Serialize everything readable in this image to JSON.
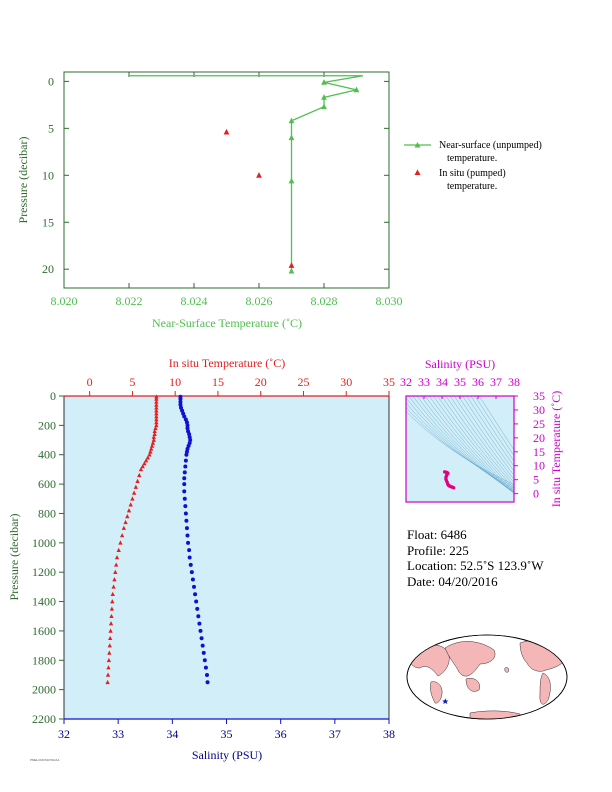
{
  "colors": {
    "green": "#4fbf4f",
    "red": "#e61e1e",
    "blue": "#1010d0",
    "magenta": "#cc00cc",
    "navy": "#00008b",
    "darkgreen": "#2f6b2f",
    "plot_bg": "#d2eef8"
  },
  "chart_data": [
    {
      "type": "line",
      "xlabel": "Near-Surface Temperature (˚C)",
      "ylabel": "Pressure (decibar)",
      "xlim": [
        8.02,
        8.03
      ],
      "ylim": [
        22,
        -1
      ],
      "x_ticks": [
        "8.020",
        "8.022",
        "8.024",
        "8.026",
        "8.028",
        "8.030"
      ],
      "x_tick_values": [
        8.02,
        8.022,
        8.024,
        8.026,
        8.028,
        8.03
      ],
      "y_ticks": [
        "0",
        "5",
        "10",
        "15",
        "20"
      ],
      "y_tick_values": [
        0,
        5,
        10,
        15,
        20
      ],
      "series": [
        {
          "name": "Near-surface (unpumped) temperature.",
          "marker": "triangle-line",
          "points": [
            [
              8.022,
              -0.6
            ],
            [
              8.0292,
              -0.6
            ],
            [
              8.028,
              0.1
            ],
            [
              8.029,
              0.9
            ],
            [
              8.028,
              1.7
            ],
            [
              8.028,
              2.7
            ],
            [
              8.027,
              4.2
            ],
            [
              8.027,
              6.0
            ],
            [
              8.027,
              10.6
            ],
            [
              8.027,
              20.2
            ]
          ]
        },
        {
          "name": "In situ (pumped) temperature.",
          "marker": "triangle",
          "points": [
            [
              8.025,
              5.4
            ],
            [
              8.026,
              10.0
            ],
            [
              8.027,
              19.6
            ]
          ]
        }
      ],
      "legend": [
        {
          "line1": "Near-surface (unpumped)",
          "line2": "temperature."
        },
        {
          "line1": "In situ (pumped)",
          "line2": "temperature."
        }
      ]
    },
    {
      "type": "scatter",
      "title_top": "In situ Temperature (˚C)",
      "xlabel": "Salinity (PSU)",
      "ylabel": "Pressure (decibar)",
      "temp_lim": [
        -3,
        35
      ],
      "temp_ticks": [
        "0",
        "5",
        "10",
        "15",
        "20",
        "25",
        "30",
        "35"
      ],
      "temp_tick_values": [
        0,
        5,
        10,
        15,
        20,
        25,
        30,
        35
      ],
      "sal_lim": [
        32,
        38
      ],
      "sal_ticks": [
        "32",
        "33",
        "34",
        "35",
        "36",
        "37",
        "38"
      ],
      "sal_tick_values": [
        32,
        33,
        34,
        35,
        36,
        37,
        38
      ],
      "ylim": [
        2200,
        0
      ],
      "y_ticks": [
        "0",
        "200",
        "400",
        "600",
        "800",
        "1000",
        "1200",
        "1400",
        "1600",
        "1800",
        "2000",
        "2200"
      ],
      "y_tick_values": [
        0,
        200,
        400,
        600,
        800,
        1000,
        1200,
        1400,
        1600,
        1800,
        2000,
        2200
      ],
      "temperature": {
        "name": "In situ Temperature",
        "points": [
          [
            7.8,
            5
          ],
          [
            7.8,
            20
          ],
          [
            7.8,
            40
          ],
          [
            7.8,
            60
          ],
          [
            7.8,
            80
          ],
          [
            7.8,
            100
          ],
          [
            7.8,
            120
          ],
          [
            7.8,
            140
          ],
          [
            7.8,
            160
          ],
          [
            7.8,
            180
          ],
          [
            7.8,
            200
          ],
          [
            7.7,
            220
          ],
          [
            7.6,
            240
          ],
          [
            7.6,
            260
          ],
          [
            7.5,
            280
          ],
          [
            7.5,
            300
          ],
          [
            7.4,
            320
          ],
          [
            7.3,
            340
          ],
          [
            7.2,
            360
          ],
          [
            7.1,
            380
          ],
          [
            7.0,
            400
          ],
          [
            6.8,
            420
          ],
          [
            6.6,
            440
          ],
          [
            6.4,
            460
          ],
          [
            6.2,
            480
          ],
          [
            6.0,
            500
          ],
          [
            5.8,
            540
          ],
          [
            5.6,
            580
          ],
          [
            5.4,
            620
          ],
          [
            5.2,
            660
          ],
          [
            5.0,
            700
          ],
          [
            4.8,
            740
          ],
          [
            4.6,
            780
          ],
          [
            4.4,
            820
          ],
          [
            4.2,
            860
          ],
          [
            4.0,
            900
          ],
          [
            3.8,
            950
          ],
          [
            3.6,
            1000
          ],
          [
            3.4,
            1050
          ],
          [
            3.2,
            1100
          ],
          [
            3.1,
            1150
          ],
          [
            3.0,
            1200
          ],
          [
            2.9,
            1250
          ],
          [
            2.8,
            1300
          ],
          [
            2.7,
            1350
          ],
          [
            2.65,
            1400
          ],
          [
            2.6,
            1450
          ],
          [
            2.55,
            1500
          ],
          [
            2.5,
            1550
          ],
          [
            2.45,
            1600
          ],
          [
            2.4,
            1650
          ],
          [
            2.35,
            1700
          ],
          [
            2.3,
            1750
          ],
          [
            2.25,
            1800
          ],
          [
            2.2,
            1850
          ],
          [
            2.15,
            1900
          ],
          [
            2.1,
            1950
          ]
        ]
      },
      "salinity": {
        "name": "Salinity",
        "points": [
          [
            34.15,
            5
          ],
          [
            34.15,
            20
          ],
          [
            34.15,
            40
          ],
          [
            34.15,
            60
          ],
          [
            34.16,
            80
          ],
          [
            34.18,
            100
          ],
          [
            34.2,
            120
          ],
          [
            34.22,
            140
          ],
          [
            34.25,
            160
          ],
          [
            34.27,
            180
          ],
          [
            34.28,
            200
          ],
          [
            34.28,
            220
          ],
          [
            34.29,
            240
          ],
          [
            34.31,
            260
          ],
          [
            34.32,
            280
          ],
          [
            34.33,
            300
          ],
          [
            34.32,
            320
          ],
          [
            34.3,
            340
          ],
          [
            34.28,
            360
          ],
          [
            34.27,
            380
          ],
          [
            34.26,
            400
          ],
          [
            34.25,
            440
          ],
          [
            34.24,
            480
          ],
          [
            34.23,
            520
          ],
          [
            34.22,
            560
          ],
          [
            34.22,
            600
          ],
          [
            34.22,
            650
          ],
          [
            34.23,
            700
          ],
          [
            34.24,
            750
          ],
          [
            34.25,
            800
          ],
          [
            34.26,
            850
          ],
          [
            34.27,
            900
          ],
          [
            34.28,
            950
          ],
          [
            34.29,
            1000
          ],
          [
            34.31,
            1050
          ],
          [
            34.32,
            1100
          ],
          [
            34.34,
            1150
          ],
          [
            34.36,
            1200
          ],
          [
            34.38,
            1250
          ],
          [
            34.4,
            1300
          ],
          [
            34.42,
            1350
          ],
          [
            34.44,
            1400
          ],
          [
            34.46,
            1450
          ],
          [
            34.48,
            1500
          ],
          [
            34.5,
            1550
          ],
          [
            34.52,
            1600
          ],
          [
            34.54,
            1650
          ],
          [
            34.56,
            1700
          ],
          [
            34.58,
            1750
          ],
          [
            34.6,
            1800
          ],
          [
            34.62,
            1850
          ],
          [
            34.64,
            1900
          ],
          [
            34.65,
            1950
          ]
        ]
      }
    },
    {
      "type": "scatter",
      "title": "Salinity (PSU)",
      "ylabel": "In situ Temperature (˚C)",
      "xlim": [
        32,
        38
      ],
      "ylim": [
        -3,
        35
      ],
      "x_ticks": [
        "32",
        "33",
        "34",
        "35",
        "36",
        "37",
        "38"
      ],
      "x_tick_values": [
        32,
        33,
        34,
        35,
        36,
        37,
        38
      ],
      "y_ticks": [
        "0",
        "5",
        "10",
        "15",
        "20",
        "25",
        "30",
        "35"
      ],
      "y_tick_values": [
        0,
        5,
        10,
        15,
        20,
        25,
        30,
        35
      ],
      "points": [
        [
          34.15,
          7.8
        ],
        [
          34.2,
          7.7
        ],
        [
          34.28,
          7.6
        ],
        [
          34.33,
          7.3
        ],
        [
          34.28,
          7.0
        ],
        [
          34.25,
          6.4
        ],
        [
          34.22,
          5.8
        ],
        [
          34.22,
          5.2
        ],
        [
          34.25,
          4.6
        ],
        [
          34.29,
          4.0
        ],
        [
          34.32,
          3.4
        ],
        [
          34.36,
          3.0
        ],
        [
          34.4,
          2.8
        ],
        [
          34.46,
          2.6
        ],
        [
          34.52,
          2.45
        ],
        [
          34.58,
          2.3
        ],
        [
          34.65,
          2.1
        ]
      ]
    }
  ],
  "info": {
    "float": "Float:  6486",
    "profile": "Profile:  225",
    "location": "Location:  52.5˚S  123.9˚W",
    "date": "Date:  04/20/2016"
  },
  "map": {
    "marker_icon": "star-icon",
    "marker_lon": -123.9,
    "marker_lat": -52.5
  },
  "footer": {
    "stamp": "PMEL/UW/SIO/NOAA"
  }
}
